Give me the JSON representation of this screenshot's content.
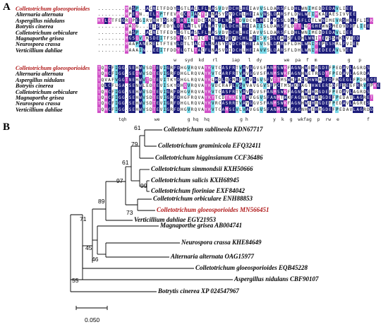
{
  "figure": {
    "panel_a_label": "A",
    "panel_b_label": "B"
  },
  "alignment_block1": {
    "names": [
      "Colletotrichum gloeosporioides",
      "Alternaria alternata",
      "Aspergillus nidulans",
      "Botrytis cinerea",
      "Colletotrichum orbiculare",
      "Magnaporthe grisea",
      "Neurospora crassa",
      "Verticillium dahliae"
    ],
    "sequences": [
      "........MASP..ACNITFDDYLGTLACLFLNASVDVDCHLHEIAVVSLDARSFLDHLWNIMEDDEDAVLIEE",
      "........MPEKN..ELKPTFEVMGCQIACYILNASYDVDCHLHEIAVNSLDARSFLDNLWEIMKAEAESIVVEE",
      "MTLQTFEGRTPEGIRVNHTDSRFTRYIRTDCCARLFLNASYDVDCHLHEIAVSSLDARSFLDTLWNIMEVRSHRLFLIEK",
      "........MAQG...EISFEDYLDTLATLVFLNATVDLDCHLHEIAIISLDARSFLDTTLGKGHEWNSMEDVDDFLIEE",
      "........MASP..ACNITFEDYLGTLASLFLNASVDVDCHLHEIAVVSLDARSFLDHLWNIMEDDEDAVLIEE",
      "........MGSQVQKSDEITFSDYLGTLMICYLLNASVDVDCHLHEISVSSLDARSFLDHLWNIMEVSSHKLVIED",
      "........MAAPANEKEITFTEYLDTLTACYLLNASYDVDCHLHEIAVSSLDARSFLDHLWNIMEPSSHRLFVIEE",
      "........MAAAIN..EEITFDDYLGTLTACFLNASVDIDCHLHEIAVVSLDARSFLDHLWNIMEDEEAVLVEE"
    ],
    "consensus": "                      w   syd  kd   rl     iap   l  dy        we  pa  f  m           g   p"
  },
  "alignment_block2": {
    "names": [
      "Colletotrichum gloeosporioides",
      "Alternaria alternata",
      "Aspergillus nidulans",
      "Botrytis cinerea",
      "Colletotrichum orbiculare",
      "Magnaporthe grisea",
      "Neurospora crassa",
      "Verticillium dahliae"
    ],
    "sequences": [
      "TQMCFIGG.SEHWVSDTEVIGRFDHGVRQVAYKVTCASFRTVAVGGVSFANMSWKFAGNHWEHRGDEFPEDAVLAGRDS",
      "TQMCFIGG.SEQWVSDTEVIGRFDHGLRQVAYKVTCARFRTVAVGGVSFANMSWKFAGNHWETRGDYFPEDAVLAGRDA",
      "TQVAFVGGTNEHWVTDTEVITKYDHGLRQVAYKLHDLQCMRFVAVSGVSFVTTMSWKFACNHWNRGFDFRGEGLFPDREGE",
      "TQLCFLGA.SENWLEDTEVISKYDHQVRQVAYKVDCRAPLVGVVAVGGVSFPCTMSWKFAGTHWEERGDFFREGFRRVFPKE",
      "TQMCFIGG.SEHWVSDTEVIGRFDHGVRQVAYKVTCASFRTVAVGGVSFANMSWKFAGNHWEHRGDEFPEDAVLAGRDS",
      "TQMCFIGG.SEHWVSDTEVIGRFDHGFRQVAYKYTCDTMKEVTHVGGVSFANMTWKFAGNHWEHRGDEFPEDAVLAGRET",
      "TQMCFIGG.SEHWVSDTEVIGRFDHGLRQVAYKVRCASRRTVAVGGVSFANMSWKFAGNHWEHRGDEFPEDAVLAGRES",
      "TQMCFIGG.SEHWVSDTEVIGRFDHGVRQVAYKVTCAMSEVLVAVGGVSFANMSWKFAGNHWEHRGDEFPEDAVLAGRDD"
    ],
    "consensus": "  tqh          we          g hq  hq           g h         y  k  g  wkfag  p  rw  e          f"
  },
  "tree": {
    "taxa": [
      "Colletotrichum sublineola KDN67717",
      "Colletotrichum graminicola EFQ32411",
      "Colletotrichum higginsianum CCF36486",
      "Colletotrichum simmondsii KXH50666",
      "Colletotrichum salicis KXH68945",
      "Colletotrichum fioriniae EXF84042",
      "Colletotrichum orbiculare ENH88853",
      "Colletotrichum gloeosporioides MN566451",
      "Verticillium dahliae EGY21953",
      "Magnaporthe grisea AB004741",
      "Neurospora crassa KHE84649",
      "Alternaria alternata OAG15977",
      "Colletotrichum gloeosporioides EQB45228",
      "Aspergillus nidulans CBF90107",
      "Botrytis cinerea XP 024547967"
    ],
    "bootstrap": [
      "61",
      "79",
      "61",
      "97",
      "99",
      "89",
      "73",
      "71",
      "45",
      "46",
      "55"
    ],
    "scale_label": "0.050",
    "highlight_color": "#b01818"
  }
}
